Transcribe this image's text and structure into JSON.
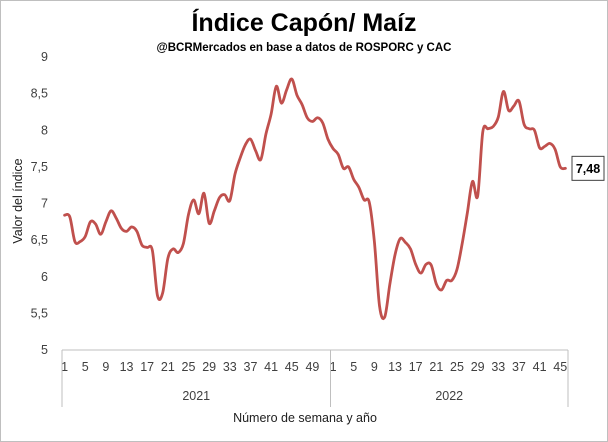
{
  "chart_data": {
    "type": "line",
    "title": "Índice Capón/ Maíz",
    "subtitle": "@BCRMercados  en base a datos de ROSPORC y CAC",
    "ylabel": "Valor del índice",
    "xlabel": "Número de semana  y año",
    "ylim": [
      5,
      9
    ],
    "yticks": [
      "5",
      "5,5",
      "6",
      "6,5",
      "7",
      "7,5",
      "8",
      "8,5",
      "9"
    ],
    "grid": false,
    "years": [
      {
        "label": "2021",
        "weeks": 52,
        "tick_labels": [
          "1",
          "5",
          "9",
          "13",
          "17",
          "21",
          "25",
          "29",
          "33",
          "37",
          "41",
          "45",
          "49"
        ]
      },
      {
        "label": "2022",
        "weeks": 46,
        "tick_labels": [
          "1",
          "5",
          "9",
          "13",
          "17",
          "21",
          "25",
          "29",
          "33",
          "37",
          "41",
          "45"
        ]
      }
    ],
    "line_color": "#c0504d",
    "series": [
      {
        "values": [
          6.84,
          6.82,
          6.48,
          6.48,
          6.55,
          6.75,
          6.72,
          6.58,
          6.75,
          6.9,
          6.8,
          6.66,
          6.62,
          6.68,
          6.62,
          6.43,
          6.4,
          6.36,
          5.74,
          5.78,
          6.25,
          6.38,
          6.33,
          6.45,
          6.85,
          7.05,
          6.86,
          7.14,
          6.73,
          6.9,
          7.08,
          7.12,
          7.04,
          7.4,
          7.62,
          7.8,
          7.88,
          7.72,
          7.6,
          7.95,
          8.22,
          8.6,
          8.37,
          8.55,
          8.7,
          8.48,
          8.35,
          8.17,
          8.12,
          8.17,
          8.1,
          7.88,
          7.75,
          7.67,
          7.48,
          7.5,
          7.33,
          7.22,
          7.05,
          7.02,
          6.48,
          5.6,
          5.45,
          5.9,
          6.3,
          6.52,
          6.47,
          6.38,
          6.17,
          6.05,
          6.17,
          6.16,
          5.9,
          5.82,
          5.95,
          5.95,
          6.1,
          6.45,
          6.87,
          7.3,
          7.1,
          7.98,
          8.02,
          8.05,
          8.18,
          8.53,
          8.27,
          8.33,
          8.4,
          8.08,
          8.02,
          8.0,
          7.76,
          7.78,
          7.82,
          7.74,
          7.5,
          7.48
        ]
      }
    ],
    "last_value_label": "7,48"
  }
}
